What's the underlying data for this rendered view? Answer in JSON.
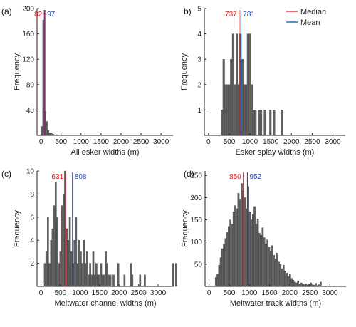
{
  "figure": {
    "legend": {
      "median_label": "Median",
      "mean_label": "Mean",
      "placement": "top-right of panel b"
    },
    "colors": {
      "bar": "#616161",
      "median": "#e0191b",
      "mean": "#2547a6",
      "axis": "#222222"
    }
  },
  "chart_data": [
    {
      "type": "bar",
      "panel": "(a)",
      "xlabel": "All esker widths (m)",
      "ylabel": "Frequency",
      "xlim": [
        -100,
        3300
      ],
      "ylim": [
        0,
        200
      ],
      "xticks": [
        0,
        500,
        1000,
        1500,
        2000,
        2500,
        3000
      ],
      "yticks": [
        40,
        80,
        120,
        160,
        200
      ],
      "bin_start": 0,
      "bin_width": 40,
      "values": [
        14,
        182,
        38,
        22,
        8,
        4,
        3,
        2,
        1,
        1,
        1
      ],
      "median": 82,
      "mean": 97
    },
    {
      "type": "bar",
      "panel": "b)",
      "xlabel": "Esker splay widths (m)",
      "ylabel": "Frequency",
      "xlim": [
        -100,
        3300
      ],
      "ylim": [
        0,
        5
      ],
      "xticks": [
        0,
        500,
        1000,
        1500,
        2000,
        2500,
        3000
      ],
      "yticks": [
        1,
        2,
        3,
        4,
        5
      ],
      "bin_start": 300,
      "bin_width": 45,
      "values": [
        1,
        3,
        2,
        2,
        2,
        3,
        4,
        2,
        4,
        2,
        4,
        3,
        2,
        2,
        4,
        4,
        2,
        1,
        1,
        0,
        1,
        1,
        0,
        1,
        0,
        0,
        1,
        0,
        1,
        0,
        0,
        0,
        1
      ],
      "median": 737,
      "mean": 781
    },
    {
      "type": "bar",
      "panel": "(c)",
      "xlabel": "Meltwater channel widths (m)",
      "ylabel": "Frequency",
      "xlim": [
        -100,
        3400
      ],
      "ylim": [
        0,
        10
      ],
      "xticks": [
        0,
        500,
        1000,
        1500,
        2000,
        2500,
        3000
      ],
      "yticks": [
        2,
        4,
        6,
        8,
        10
      ],
      "bin_start": 80,
      "bin_width": 40,
      "values": [
        2,
        3,
        6,
        2,
        4,
        5,
        7,
        9,
        6,
        2,
        3,
        7,
        8,
        10,
        5,
        4,
        6,
        3,
        2,
        4,
        6,
        2,
        4,
        3,
        2,
        4,
        2,
        3,
        1,
        2,
        1,
        3,
        1,
        2,
        1,
        1,
        2,
        1,
        1,
        3,
        2,
        1,
        1,
        0,
        1,
        0,
        0,
        2,
        0,
        0,
        0,
        1,
        0,
        0,
        0,
        2,
        1,
        0,
        0,
        0,
        0,
        1,
        0,
        0,
        1,
        0,
        0,
        0,
        0,
        0,
        0,
        0,
        0,
        0,
        0,
        0,
        0,
        0,
        0,
        0,
        0,
        0,
        2,
        0,
        2
      ],
      "median": 631,
      "mean": 808
    },
    {
      "type": "bar",
      "panel": "(d)",
      "xlabel": "Meltwater track widths (m)",
      "ylabel": "Frequency",
      "xlim": [
        -100,
        3400
      ],
      "ylim": [
        0,
        260
      ],
      "xticks": [
        0,
        500,
        1000,
        1500,
        2000,
        2500,
        3000
      ],
      "yticks": [
        50,
        100,
        150,
        200,
        250
      ],
      "bin_start": 150,
      "bin_width": 40,
      "values": [
        20,
        28,
        48,
        65,
        85,
        95,
        108,
        122,
        135,
        150,
        140,
        168,
        182,
        175,
        210,
        195,
        232,
        215,
        200,
        175,
        225,
        168,
        150,
        162,
        180,
        140,
        152,
        120,
        115,
        132,
        110,
        95,
        105,
        88,
        80,
        92,
        70,
        62,
        75,
        55,
        50,
        40,
        48,
        35,
        30,
        22,
        28,
        18,
        14,
        10,
        8,
        12,
        6,
        8,
        5,
        4,
        6,
        3,
        5,
        8,
        4,
        3,
        7,
        2,
        4,
        10
      ],
      "median": 850,
      "mean": 952
    }
  ]
}
